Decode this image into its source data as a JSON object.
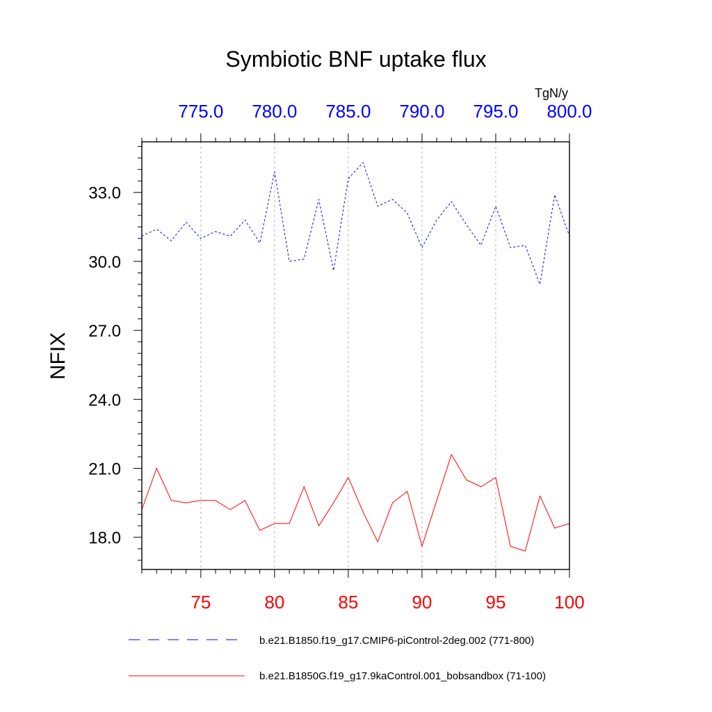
{
  "chart_data": {
    "type": "line",
    "title": "Symbiotic BNF uptake flux",
    "ylabel": "NFIX",
    "units": "TgN/y",
    "ylim": [
      16.6,
      35.2
    ],
    "yticks": [
      "33.0",
      "30.0",
      "27.0",
      "24.0",
      "21.0",
      "18.0"
    ],
    "ytick_values": [
      33,
      30,
      27,
      24,
      21,
      18
    ],
    "x_bottom": {
      "range": [
        71,
        100
      ],
      "ticks": [
        "75",
        "80",
        "85",
        "90",
        "95",
        "100"
      ],
      "tick_values": [
        75,
        80,
        85,
        90,
        95,
        100
      ],
      "color": "#ff0000"
    },
    "x_top": {
      "range": [
        771,
        800
      ],
      "ticks": [
        "775.0",
        "780.0",
        "785.0",
        "790.0",
        "795.0",
        "800.0"
      ],
      "tick_values": [
        775,
        780,
        785,
        790,
        795,
        800
      ],
      "color": "#0000ff"
    },
    "grid": "vertical dashed",
    "legend_position": "bottom",
    "series": [
      {
        "name": "b.e21.B1850.f19_g17.CMIP6-piControl-2deg.002 (771-800)",
        "color": "#0000ff",
        "style": "dashed",
        "x": [
          771,
          772,
          773,
          774,
          775,
          776,
          777,
          778,
          779,
          780,
          781,
          782,
          783,
          784,
          785,
          786,
          787,
          788,
          789,
          790,
          791,
          792,
          793,
          794,
          795,
          796,
          797,
          798,
          799,
          800
        ],
        "values": [
          31.1,
          31.4,
          30.9,
          31.7,
          31.0,
          31.3,
          31.1,
          31.8,
          30.8,
          33.9,
          30.0,
          30.1,
          32.7,
          29.6,
          33.6,
          34.3,
          32.4,
          32.7,
          32.1,
          30.6,
          31.8,
          32.6,
          31.6,
          30.7,
          32.4,
          30.6,
          30.7,
          29.0,
          32.9,
          31.1
        ]
      },
      {
        "name": "b.e21.B1850G.f19_g17.9kaControl.001_bobsandbox (71-100)",
        "color": "#ff0000",
        "style": "solid",
        "x": [
          71,
          72,
          73,
          74,
          75,
          76,
          77,
          78,
          79,
          80,
          81,
          82,
          83,
          84,
          85,
          86,
          87,
          88,
          89,
          90,
          91,
          92,
          93,
          94,
          95,
          96,
          97,
          98,
          99,
          100
        ],
        "values": [
          19.2,
          21.0,
          19.6,
          19.5,
          19.6,
          19.6,
          19.2,
          19.6,
          18.3,
          18.6,
          18.6,
          20.2,
          18.5,
          19.5,
          20.6,
          19.1,
          17.8,
          19.5,
          20.0,
          17.6,
          19.6,
          21.6,
          20.5,
          20.2,
          20.6,
          17.6,
          17.4,
          19.8,
          18.4,
          18.6
        ]
      }
    ]
  }
}
